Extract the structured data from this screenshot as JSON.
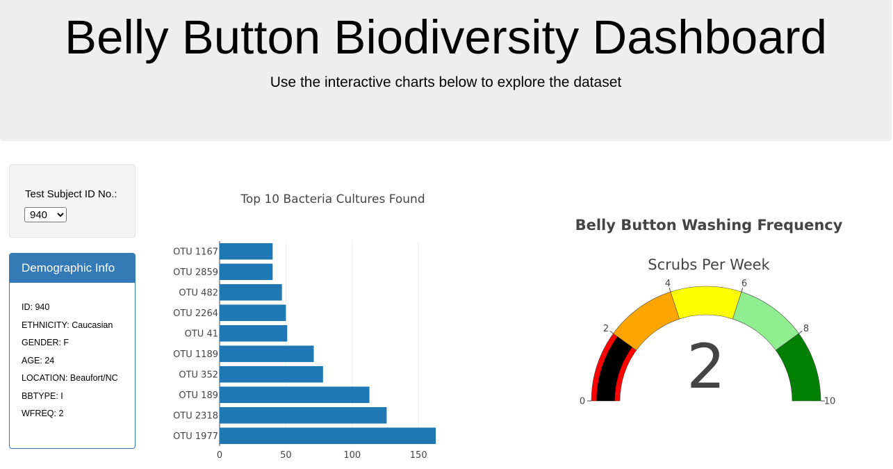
{
  "header": {
    "title": "Belly Button Biodiversity Dashboard",
    "subtitle": "Use the interactive charts below to explore the dataset"
  },
  "selector": {
    "label": "Test Subject ID No.:",
    "selected": "940"
  },
  "demographics": {
    "heading": "Demographic Info",
    "rows": [
      "ID: 940",
      "ETHNICITY: Caucasian",
      "GENDER: F",
      "AGE: 24",
      "LOCATION: Beaufort/NC",
      "BBTYPE: I",
      "WFREQ: 2"
    ]
  },
  "chart_data": [
    {
      "type": "bar",
      "orientation": "horizontal",
      "title": "Top 10 Bacteria Cultures Found",
      "categories": [
        "OTU 1167",
        "OTU 2859",
        "OTU 482",
        "OTU 2264",
        "OTU 41",
        "OTU 1189",
        "OTU 352",
        "OTU 189",
        "OTU 2318",
        "OTU 1977"
      ],
      "values": [
        40,
        40,
        47,
        50,
        51,
        71,
        78,
        113,
        126,
        163
      ],
      "xlim": [
        0,
        163
      ],
      "xticks": [
        0,
        50,
        100,
        150
      ],
      "bar_color": "#1f77b4",
      "grid": true
    },
    {
      "type": "gauge",
      "title": "Belly Button Washing Frequency",
      "subtitle": "Scrubs Per Week",
      "value": 2,
      "range": [
        0,
        10
      ],
      "ticks": [
        0,
        2,
        4,
        6,
        8,
        10
      ],
      "bar_color": "#000000",
      "steps": [
        {
          "range": [
            0,
            2
          ],
          "color": "#ff0000"
        },
        {
          "range": [
            2,
            4
          ],
          "color": "#ffa500"
        },
        {
          "range": [
            4,
            6
          ],
          "color": "#ffff00"
        },
        {
          "range": [
            6,
            8
          ],
          "color": "#90ee90"
        },
        {
          "range": [
            8,
            10
          ],
          "color": "#008000"
        }
      ]
    }
  ]
}
